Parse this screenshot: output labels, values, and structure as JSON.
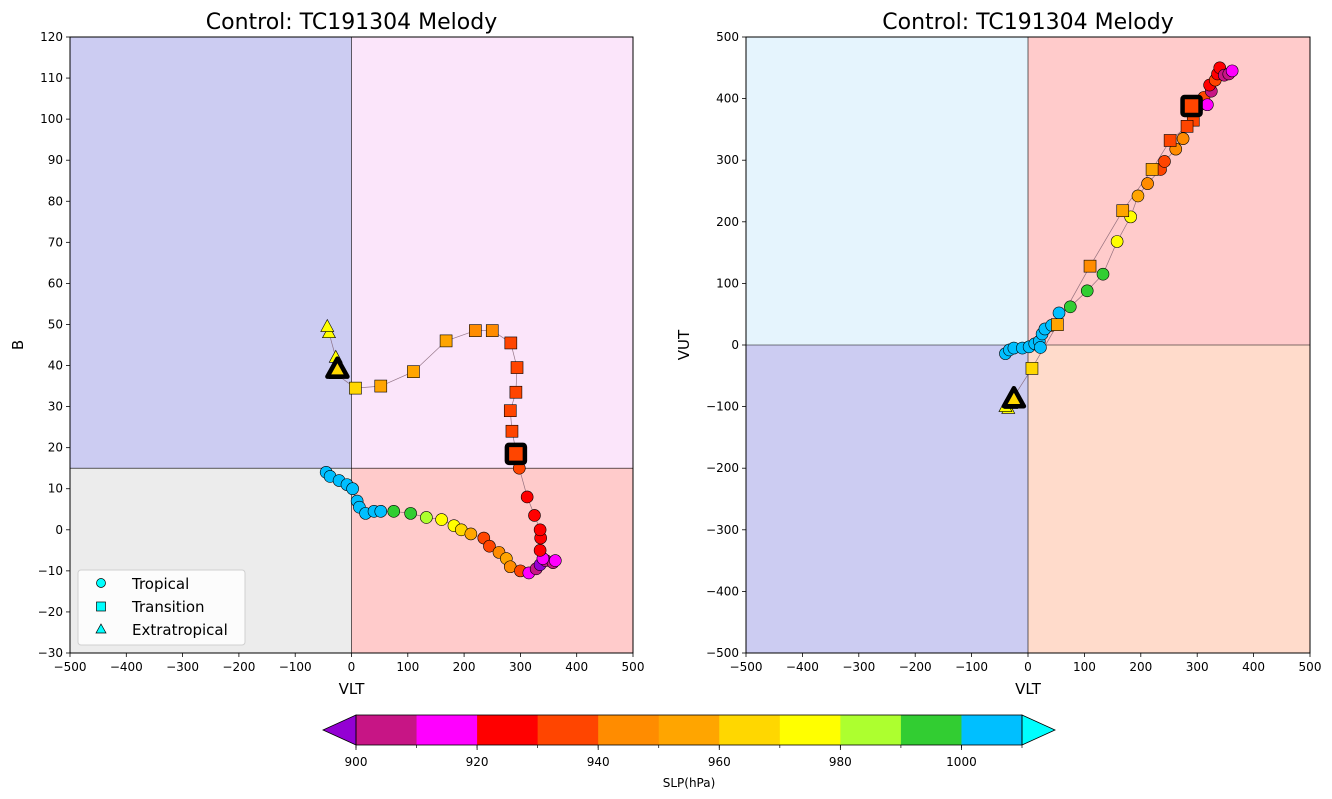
{
  "chart_data": [
    {
      "type": "scatter",
      "title": "Control: TC191304 Melody",
      "xlabel": "VLT",
      "ylabel": "B",
      "xlim": [
        -500,
        500
      ],
      "ylim": [
        -30,
        120
      ],
      "xticks": [
        -500,
        -400,
        -300,
        -200,
        -100,
        0,
        100,
        200,
        300,
        400,
        500
      ],
      "yticks": [
        -30,
        -20,
        -10,
        0,
        10,
        20,
        30,
        40,
        50,
        60,
        70,
        80,
        90,
        100,
        110,
        120
      ],
      "xtick_labels": [
        "−500",
        "−400",
        "−300",
        "−200",
        "−100",
        "0",
        "100",
        "200",
        "300",
        "400",
        "500"
      ],
      "ytick_labels": [
        "−30",
        "−20",
        "−10",
        "0",
        "10",
        "20",
        "30",
        "40",
        "50",
        "60",
        "70",
        "80",
        "90",
        "100",
        "110",
        "120"
      ],
      "quadrant_split": {
        "x": 0,
        "y": 15
      },
      "quadrant_colors": {
        "top_left": "#ccccf2",
        "top_right": "#fbe5fa",
        "bottom_left": "#ececec",
        "bottom_right": "#ffcbcb"
      },
      "legend": {
        "placement": "lower-left",
        "entries": [
          {
            "label": "Tropical",
            "marker": "circle"
          },
          {
            "label": "Transition",
            "marker": "square"
          },
          {
            "label": "Extratropical",
            "marker": "triangle"
          }
        ]
      },
      "points": [
        {
          "x": -45,
          "y": 14,
          "slp": 1005,
          "phase": "tropical"
        },
        {
          "x": -38,
          "y": 13,
          "slp": 1005,
          "phase": "tropical"
        },
        {
          "x": -22,
          "y": 12,
          "slp": 1005,
          "phase": "tropical"
        },
        {
          "x": -8,
          "y": 11,
          "slp": 1005,
          "phase": "tropical"
        },
        {
          "x": 2,
          "y": 10,
          "slp": 1005,
          "phase": "tropical"
        },
        {
          "x": 10,
          "y": 7,
          "slp": 1005,
          "phase": "tropical"
        },
        {
          "x": 14,
          "y": 5.5,
          "slp": 1005,
          "phase": "tropical"
        },
        {
          "x": 25,
          "y": 4,
          "slp": 1005,
          "phase": "tropical"
        },
        {
          "x": 40,
          "y": 4.5,
          "slp": 1005,
          "phase": "tropical"
        },
        {
          "x": 52,
          "y": 4.5,
          "slp": 1005,
          "phase": "tropical"
        },
        {
          "x": 75,
          "y": 4.5,
          "slp": 995,
          "phase": "tropical"
        },
        {
          "x": 105,
          "y": 4,
          "slp": 995,
          "phase": "tropical"
        },
        {
          "x": 133,
          "y": 3,
          "slp": 985,
          "phase": "tropical"
        },
        {
          "x": 160,
          "y": 2.5,
          "slp": 975,
          "phase": "tropical"
        },
        {
          "x": 182,
          "y": 1,
          "slp": 975,
          "phase": "tropical"
        },
        {
          "x": 195,
          "y": 0,
          "slp": 965,
          "phase": "tropical"
        },
        {
          "x": 212,
          "y": -1,
          "slp": 955,
          "phase": "tropical"
        },
        {
          "x": 235,
          "y": -2,
          "slp": 935,
          "phase": "tropical"
        },
        {
          "x": 245,
          "y": -4,
          "slp": 935,
          "phase": "tropical"
        },
        {
          "x": 262,
          "y": -5.5,
          "slp": 945,
          "phase": "tropical"
        },
        {
          "x": 275,
          "y": -7,
          "slp": 955,
          "phase": "tropical"
        },
        {
          "x": 282,
          "y": -9,
          "slp": 945,
          "phase": "tropical"
        },
        {
          "x": 300,
          "y": -10,
          "slp": 935,
          "phase": "tropical"
        },
        {
          "x": 315,
          "y": -10.5,
          "slp": 915,
          "phase": "tropical"
        },
        {
          "x": 328,
          "y": -9.5,
          "slp": 905,
          "phase": "tropical"
        },
        {
          "x": 335,
          "y": -8.5,
          "slp": 895,
          "phase": "tropical"
        },
        {
          "x": 345,
          "y": -7.5,
          "slp": 905,
          "phase": "tropical"
        },
        {
          "x": 358,
          "y": -8,
          "slp": 905,
          "phase": "tropical"
        },
        {
          "x": 362,
          "y": -7.5,
          "slp": 915,
          "phase": "tropical"
        },
        {
          "x": 340,
          "y": -7,
          "slp": 915,
          "phase": "tropical"
        },
        {
          "x": 335,
          "y": -5,
          "slp": 925,
          "phase": "tropical"
        },
        {
          "x": 336,
          "y": -2,
          "slp": 925,
          "phase": "tropical"
        },
        {
          "x": 335,
          "y": 0,
          "slp": 925,
          "phase": "tropical"
        },
        {
          "x": 325,
          "y": 3.5,
          "slp": 925,
          "phase": "tropical"
        },
        {
          "x": 312,
          "y": 8,
          "slp": 925,
          "phase": "tropical"
        },
        {
          "x": 298,
          "y": 15,
          "slp": 935,
          "phase": "tropical"
        },
        {
          "x": 294,
          "y": 18,
          "slp": 935,
          "phase": "transition"
        },
        {
          "x": 285,
          "y": 24,
          "slp": 935,
          "phase": "transition"
        },
        {
          "x": 282,
          "y": 29,
          "slp": 935,
          "phase": "transition"
        },
        {
          "x": 292,
          "y": 33.5,
          "slp": 935,
          "phase": "transition"
        },
        {
          "x": 294,
          "y": 39.5,
          "slp": 935,
          "phase": "transition"
        },
        {
          "x": 283,
          "y": 45.5,
          "slp": 935,
          "phase": "transition"
        },
        {
          "x": 250,
          "y": 48.5,
          "slp": 945,
          "phase": "transition"
        },
        {
          "x": 220,
          "y": 48.5,
          "slp": 945,
          "phase": "transition"
        },
        {
          "x": 168,
          "y": 46,
          "slp": 955,
          "phase": "transition"
        },
        {
          "x": 110,
          "y": 38.5,
          "slp": 955,
          "phase": "transition"
        },
        {
          "x": 52,
          "y": 35,
          "slp": 955,
          "phase": "transition"
        },
        {
          "x": 7,
          "y": 34.5,
          "slp": 965,
          "phase": "transition"
        },
        {
          "x": -28,
          "y": 38,
          "slp": 975,
          "phase": "extratropical"
        },
        {
          "x": -28,
          "y": 42,
          "slp": 975,
          "phase": "extratropical"
        },
        {
          "x": -40,
          "y": 48,
          "slp": 975,
          "phase": "extratropical"
        },
        {
          "x": -43,
          "y": 49.5,
          "slp": 975,
          "phase": "extratropical"
        }
      ],
      "highlighted_points": [
        {
          "x": 292,
          "y": 18.5,
          "slp": 935,
          "phase": "transition"
        },
        {
          "x": -25,
          "y": 39,
          "slp": 965,
          "phase": "extratropical"
        }
      ]
    },
    {
      "type": "scatter",
      "title": "Control: TC191304 Melody",
      "xlabel": "VLT",
      "ylabel": "VUT",
      "xlim": [
        -500,
        500
      ],
      "ylim": [
        -500,
        500
      ],
      "xticks": [
        -500,
        -400,
        -300,
        -200,
        -100,
        0,
        100,
        200,
        300,
        400,
        500
      ],
      "yticks": [
        -500,
        -400,
        -300,
        -200,
        -100,
        0,
        100,
        200,
        300,
        400,
        500
      ],
      "xtick_labels": [
        "−500",
        "−400",
        "−300",
        "−200",
        "−100",
        "0",
        "100",
        "200",
        "300",
        "400",
        "500"
      ],
      "ytick_labels": [
        "−500",
        "−400",
        "−300",
        "−200",
        "−100",
        "0",
        "100",
        "200",
        "300",
        "400",
        "500"
      ],
      "quadrant_split": {
        "x": 0,
        "y": 0
      },
      "quadrant_colors": {
        "top_left": "#e5f4fd",
        "top_right": "#ffcbcb",
        "bottom_left": "#ccccf2",
        "bottom_right": "#ffdbcb"
      },
      "points": [
        {
          "x": -40,
          "y": -14,
          "slp": 1005,
          "phase": "tropical"
        },
        {
          "x": -33,
          "y": -8,
          "slp": 1005,
          "phase": "tropical"
        },
        {
          "x": -25,
          "y": -5,
          "slp": 1005,
          "phase": "tropical"
        },
        {
          "x": -10,
          "y": -5,
          "slp": 1005,
          "phase": "tropical"
        },
        {
          "x": 2,
          "y": -3,
          "slp": 1005,
          "phase": "tropical"
        },
        {
          "x": 12,
          "y": 2,
          "slp": 1005,
          "phase": "tropical"
        },
        {
          "x": 20,
          "y": 6,
          "slp": 1005,
          "phase": "tropical"
        },
        {
          "x": 22,
          "y": -4,
          "slp": 1005,
          "phase": "tropical"
        },
        {
          "x": 25,
          "y": 18,
          "slp": 1005,
          "phase": "tropical"
        },
        {
          "x": 30,
          "y": 26,
          "slp": 1005,
          "phase": "tropical"
        },
        {
          "x": 42,
          "y": 32,
          "slp": 1005,
          "phase": "tropical"
        },
        {
          "x": 55,
          "y": 52,
          "slp": 1005,
          "phase": "tropical"
        },
        {
          "x": 75,
          "y": 62,
          "slp": 995,
          "phase": "tropical"
        },
        {
          "x": 105,
          "y": 88,
          "slp": 995,
          "phase": "tropical"
        },
        {
          "x": 133,
          "y": 115,
          "slp": 995,
          "phase": "tropical"
        },
        {
          "x": 158,
          "y": 168,
          "slp": 975,
          "phase": "tropical"
        },
        {
          "x": 182,
          "y": 208,
          "slp": 975,
          "phase": "tropical"
        },
        {
          "x": 195,
          "y": 242,
          "slp": 955,
          "phase": "tropical"
        },
        {
          "x": 212,
          "y": 262,
          "slp": 945,
          "phase": "tropical"
        },
        {
          "x": 235,
          "y": 285,
          "slp": 935,
          "phase": "tropical"
        },
        {
          "x": 242,
          "y": 298,
          "slp": 935,
          "phase": "tropical"
        },
        {
          "x": 262,
          "y": 318,
          "slp": 945,
          "phase": "tropical"
        },
        {
          "x": 275,
          "y": 335,
          "slp": 945,
          "phase": "tropical"
        },
        {
          "x": 302,
          "y": 388,
          "slp": 935,
          "phase": "tropical"
        },
        {
          "x": 312,
          "y": 402,
          "slp": 935,
          "phase": "tropical"
        },
        {
          "x": 318,
          "y": 390,
          "slp": 915,
          "phase": "tropical"
        },
        {
          "x": 325,
          "y": 412,
          "slp": 905,
          "phase": "tropical"
        },
        {
          "x": 322,
          "y": 422,
          "slp": 925,
          "phase": "tropical"
        },
        {
          "x": 332,
          "y": 430,
          "slp": 935,
          "phase": "tropical"
        },
        {
          "x": 336,
          "y": 440,
          "slp": 925,
          "phase": "tropical"
        },
        {
          "x": 340,
          "y": 450,
          "slp": 925,
          "phase": "tropical"
        },
        {
          "x": 348,
          "y": 438,
          "slp": 905,
          "phase": "tropical"
        },
        {
          "x": 356,
          "y": 440,
          "slp": 905,
          "phase": "tropical"
        },
        {
          "x": 362,
          "y": 445,
          "slp": 915,
          "phase": "tropical"
        },
        {
          "x": 290,
          "y": 385,
          "slp": 935,
          "phase": "transition"
        },
        {
          "x": 293,
          "y": 365,
          "slp": 935,
          "phase": "transition"
        },
        {
          "x": 282,
          "y": 355,
          "slp": 935,
          "phase": "transition"
        },
        {
          "x": 252,
          "y": 332,
          "slp": 935,
          "phase": "transition"
        },
        {
          "x": 220,
          "y": 285,
          "slp": 955,
          "phase": "transition"
        },
        {
          "x": 168,
          "y": 218,
          "slp": 955,
          "phase": "transition"
        },
        {
          "x": 110,
          "y": 128,
          "slp": 945,
          "phase": "transition"
        },
        {
          "x": 52,
          "y": 33,
          "slp": 955,
          "phase": "transition"
        },
        {
          "x": 7,
          "y": -38,
          "slp": 965,
          "phase": "transition"
        },
        {
          "x": -28,
          "y": -88,
          "slp": 975,
          "phase": "extratropical"
        },
        {
          "x": -35,
          "y": -103,
          "slp": 975,
          "phase": "extratropical"
        },
        {
          "x": -40,
          "y": -100,
          "slp": 975,
          "phase": "extratropical"
        },
        {
          "x": -30,
          "y": -95,
          "slp": 975,
          "phase": "extratropical"
        }
      ],
      "highlighted_points": [
        {
          "x": 290,
          "y": 388,
          "slp": 935,
          "phase": "transition"
        },
        {
          "x": -25,
          "y": -88,
          "slp": 965,
          "phase": "extratropical"
        }
      ]
    }
  ],
  "colorbar": {
    "label": "SLP(hPa)",
    "bounds": [
      900,
      910,
      920,
      930,
      940,
      950,
      960,
      970,
      980,
      990,
      1000,
      1010
    ],
    "colors": [
      "#c71585",
      "#ff00ff",
      "#ff0000",
      "#ff4500",
      "#ff8c00",
      "#ffa500",
      "#ffd700",
      "#ffff00",
      "#adff2f",
      "#32cd32",
      "#00bfff"
    ],
    "under_color": "#9400d3",
    "over_color": "#00ffff",
    "tick_values": [
      900,
      920,
      940,
      960,
      980,
      1000
    ],
    "tick_labels": [
      "900",
      "920",
      "940",
      "960",
      "980",
      "1000"
    ]
  }
}
